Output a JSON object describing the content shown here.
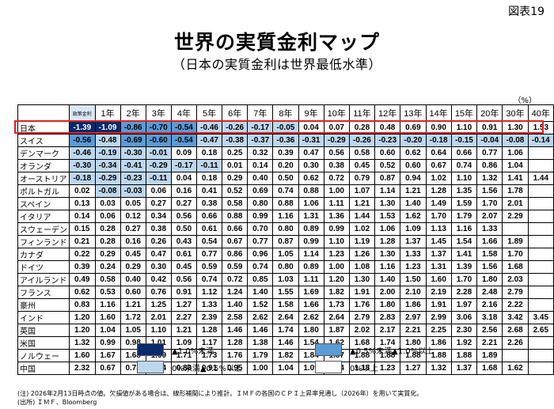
{
  "header": {
    "figure_number": "図表19",
    "title": "世界の実質金利マップ",
    "subtitle": "（日本の実質金利は世界最低水準）",
    "unit": "（%）"
  },
  "table": {
    "corner_label": "",
    "columns": [
      "政策金利",
      "1年",
      "2年",
      "3年",
      "4年",
      "5年",
      "6年",
      "7年",
      "8年",
      "9年",
      "10年",
      "11年",
      "12年",
      "13年",
      "14年",
      "15年",
      "20年",
      "30年",
      "40年"
    ],
    "rows": [
      {
        "country": "日本",
        "values": [
          "-1.39",
          "-1.09",
          "-0.86",
          "-0.70",
          "-0.54",
          "-0.46",
          "-0.26",
          "-0.17",
          "-0.05",
          "0.04",
          "0.07",
          "0.28",
          "0.48",
          "0.69",
          "0.90",
          "1.10",
          "0.91",
          "1.30",
          "1.53"
        ]
      },
      {
        "country": "スイス",
        "values": [
          "-0.56",
          "-0.48",
          "-0.69",
          "-0.60",
          "-0.54",
          "-0.47",
          "-0.38",
          "-0.37",
          "-0.36",
          "-0.31",
          "-0.29",
          "-0.26",
          "-0.23",
          "-0.20",
          "-0.18",
          "-0.15",
          "-0.04",
          "-0.08",
          "-0.14"
        ]
      },
      {
        "country": "デンマーク",
        "values": [
          "-0.46",
          "-0.19",
          "-0.30",
          "-0.01",
          "0.09",
          "0.18",
          "0.25",
          "0.32",
          "0.39",
          "0.47",
          "0.56",
          "0.58",
          "0.60",
          "0.62",
          "0.64",
          "0.66",
          "0.77",
          "1.06",
          ""
        ]
      },
      {
        "country": "オランダ",
        "values": [
          "-0.30",
          "-0.34",
          "-0.41",
          "-0.29",
          "-0.17",
          "-0.11",
          "0.01",
          "0.14",
          "0.20",
          "0.30",
          "0.38",
          "0.45",
          "0.52",
          "0.60",
          "0.67",
          "0.74",
          "0.86",
          "1.04",
          ""
        ]
      },
      {
        "country": "オーストリア",
        "values": [
          "-0.18",
          "-0.29",
          "-0.23",
          "-0.11",
          "0.04",
          "0.18",
          "0.29",
          "0.40",
          "0.50",
          "0.62",
          "0.72",
          "0.79",
          "0.87",
          "0.94",
          "1.02",
          "1.10",
          "1.32",
          "1.41",
          "1.44"
        ]
      },
      {
        "country": "ポルトガル",
        "values": [
          "0.02",
          "-0.08",
          "-0.03",
          "0.06",
          "0.16",
          "0.41",
          "0.52",
          "0.69",
          "0.74",
          "0.88",
          "1.00",
          "1.07",
          "1.14",
          "1.21",
          "1.28",
          "1.35",
          "1.56",
          "1.78",
          ""
        ]
      },
      {
        "country": "スペイン",
        "values": [
          "0.13",
          "0.03",
          "0.05",
          "0.27",
          "0.27",
          "0.38",
          "0.58",
          "0.80",
          "0.88",
          "1.06",
          "1.11",
          "1.21",
          "1.30",
          "1.40",
          "1.49",
          "1.59",
          "1.70",
          "2.01",
          ""
        ]
      },
      {
        "country": "イタリア",
        "values": [
          "0.14",
          "0.06",
          "0.12",
          "0.34",
          "0.56",
          "0.66",
          "0.88",
          "0.99",
          "1.16",
          "1.31",
          "1.36",
          "1.44",
          "1.53",
          "1.62",
          "1.70",
          "1.79",
          "2.07",
          "2.29",
          ""
        ]
      },
      {
        "country": "スウェーデン",
        "values": [
          "0.15",
          "0.28",
          "0.27",
          "0.38",
          "0.50",
          "0.61",
          "0.66",
          "0.70",
          "0.80",
          "0.89",
          "0.99",
          "1.02",
          "1.06",
          "1.09",
          "1.13",
          "1.16",
          "1.33",
          "",
          ""
        ]
      },
      {
        "country": "フィンランド",
        "values": [
          "0.21",
          "0.28",
          "0.16",
          "0.26",
          "0.43",
          "0.54",
          "0.67",
          "0.77",
          "0.87",
          "0.99",
          "1.10",
          "1.19",
          "1.28",
          "1.37",
          "1.45",
          "1.54",
          "1.66",
          "1.89",
          ""
        ]
      },
      {
        "country": "カナダ",
        "values": [
          "0.22",
          "0.29",
          "0.45",
          "0.47",
          "0.61",
          "0.77",
          "0.86",
          "0.96",
          "1.05",
          "1.14",
          "1.23",
          "1.26",
          "1.30",
          "1.33",
          "1.37",
          "1.41",
          "1.58",
          "1.70",
          ""
        ]
      },
      {
        "country": "ドイツ",
        "values": [
          "0.39",
          "0.24",
          "0.29",
          "0.30",
          "0.45",
          "0.59",
          "0.59",
          "0.74",
          "0.80",
          "0.89",
          "1.00",
          "1.08",
          "1.16",
          "1.23",
          "1.31",
          "1.39",
          "1.56",
          "1.68",
          ""
        ]
      },
      {
        "country": "アイルランド",
        "values": [
          "0.49",
          "0.58",
          "0.40",
          "0.42",
          "0.56",
          "0.74",
          "0.72",
          "0.85",
          "1.03",
          "1.11",
          "1.20",
          "1.30",
          "1.40",
          "1.50",
          "1.60",
          "1.70",
          "1.80",
          "2.03",
          ""
        ]
      },
      {
        "country": "フランス",
        "values": [
          "0.62",
          "0.53",
          "0.60",
          "0.76",
          "0.91",
          "1.12",
          "1.24",
          "1.40",
          "1.55",
          "1.69",
          "1.82",
          "1.91",
          "2.00",
          "2.10",
          "2.19",
          "2.28",
          "2.48",
          "2.79",
          ""
        ]
      },
      {
        "country": "豪州",
        "values": [
          "0.83",
          "1.16",
          "1.21",
          "1.25",
          "1.27",
          "1.33",
          "1.40",
          "1.52",
          "1.58",
          "1.66",
          "1.73",
          "1.76",
          "1.80",
          "1.86",
          "1.91",
          "1.97",
          "2.16",
          "2.22",
          ""
        ]
      },
      {
        "country": "インド",
        "values": [
          "1.20",
          "1.60",
          "1.72",
          "2.01",
          "2.27",
          "2.39",
          "2.58",
          "2.62",
          "2.64",
          "2.62",
          "2.64",
          "2.79",
          "2.83",
          "2.97",
          "2.99",
          "3.06",
          "3.18",
          "3.42",
          "3.45"
        ]
      },
      {
        "country": "英国",
        "values": [
          "1.20",
          "1.04",
          "1.05",
          "1.10",
          "1.21",
          "1.28",
          "1.46",
          "1.46",
          "1.74",
          "1.80",
          "1.87",
          "2.02",
          "2.17",
          "2.21",
          "2.25",
          "2.30",
          "2.56",
          "2.68",
          "2.65"
        ]
      },
      {
        "country": "米国",
        "values": [
          "1.32",
          "0.99",
          "0.98",
          "1.01",
          "1.09",
          "1.17",
          "1.28",
          "1.38",
          "1.46",
          "1.54",
          "1.62",
          "1.68",
          "1.74",
          "1.80",
          "1.86",
          "1.92",
          "2.21",
          "2.26",
          ""
        ]
      },
      {
        "country": "ノルウェー",
        "values": [
          "1.60",
          "1.67",
          "1.68",
          "1.69",
          "1.71",
          "1.73",
          "1.76",
          "1.79",
          "1.82",
          "1.84",
          "1.87",
          "1.88",
          "1.88",
          "1.88",
          "1.88",
          "1.88",
          "1.89",
          "",
          ""
        ]
      },
      {
        "country": "中国",
        "values": [
          "2.32",
          "0.67",
          "0.73",
          "0.74",
          "0.83",
          "0.91",
          "0.95",
          "1.00",
          "1.04",
          "1.09",
          "1.14",
          "1.18",
          "1.23",
          "1.27",
          "1.32",
          "1.37",
          "1.68",
          "1.62",
          ""
        ]
      }
    ],
    "highlighted_row": "日本",
    "highlight_color": "#e0201c"
  },
  "legend": {
    "items": [
      {
        "label": "▲1.0%未満",
        "color": "#0a2a6b"
      },
      {
        "label": "▲0.5%未満▲1.0%以上",
        "color": "#5b9bd5"
      },
      {
        "label": "0%未満▲0.5%以上",
        "color": "#bdd7ee"
      },
      {
        "label": "0%以上",
        "color": "#ffffff"
      }
    ]
  },
  "notes": {
    "note": "(注) 2026年2月13日時点の値。欠損値がある場合は、線形補間により推計。ＩＭＦの各国のＣＰＩ上昇率見通し（2026年）を用いて実質化。",
    "source": "(出所) ＩＭＦ、Bloomberg"
  }
}
